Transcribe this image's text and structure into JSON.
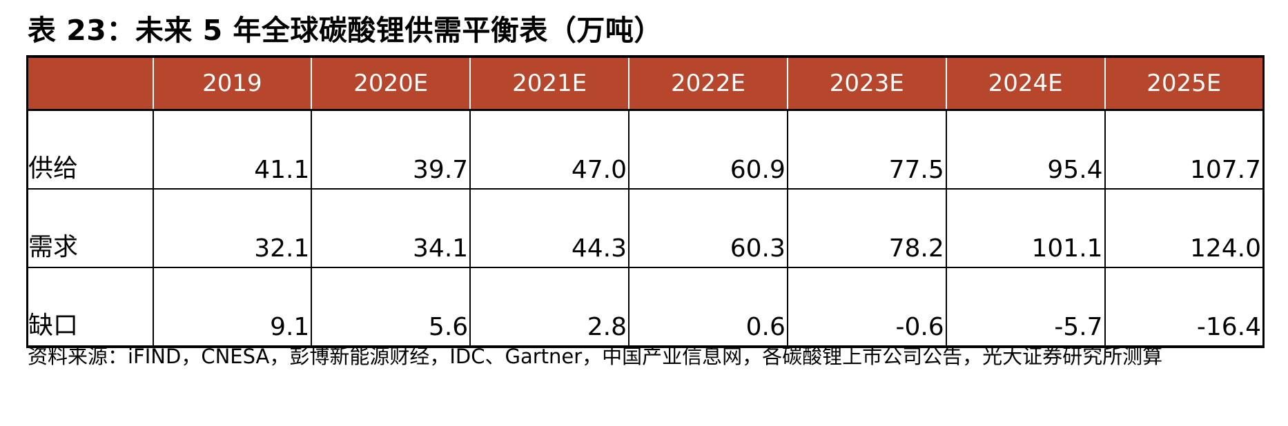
{
  "title": "表 23：未来 5 年全球碳酸锂供需平衡表（万吨）",
  "table": {
    "header": [
      "",
      "2019",
      "2020E",
      "2021E",
      "2022E",
      "2023E",
      "2024E",
      "2025E"
    ],
    "rows": [
      {
        "label": "供给",
        "values": [
          "41.1",
          "39.7",
          "47.0",
          "60.9",
          "77.5",
          "95.4",
          "107.7"
        ]
      },
      {
        "label": "需求",
        "values": [
          "32.1",
          "34.1",
          "44.3",
          "60.3",
          "78.2",
          "101.1",
          "124.0"
        ]
      },
      {
        "label": "缺口",
        "values": [
          "9.1",
          "5.6",
          "2.8",
          "0.6",
          "-0.6",
          "-5.7",
          "-16.4"
        ]
      }
    ]
  },
  "colors": {
    "header_bg": "#b6472d",
    "header_text": "#ffffff"
  },
  "source": "资料来源：iFIND，CNESA，彭博新能源财经，IDC、Gartner，中国产业信息网，各碳酸锂上市公司公告，光大证券研究所测算"
}
